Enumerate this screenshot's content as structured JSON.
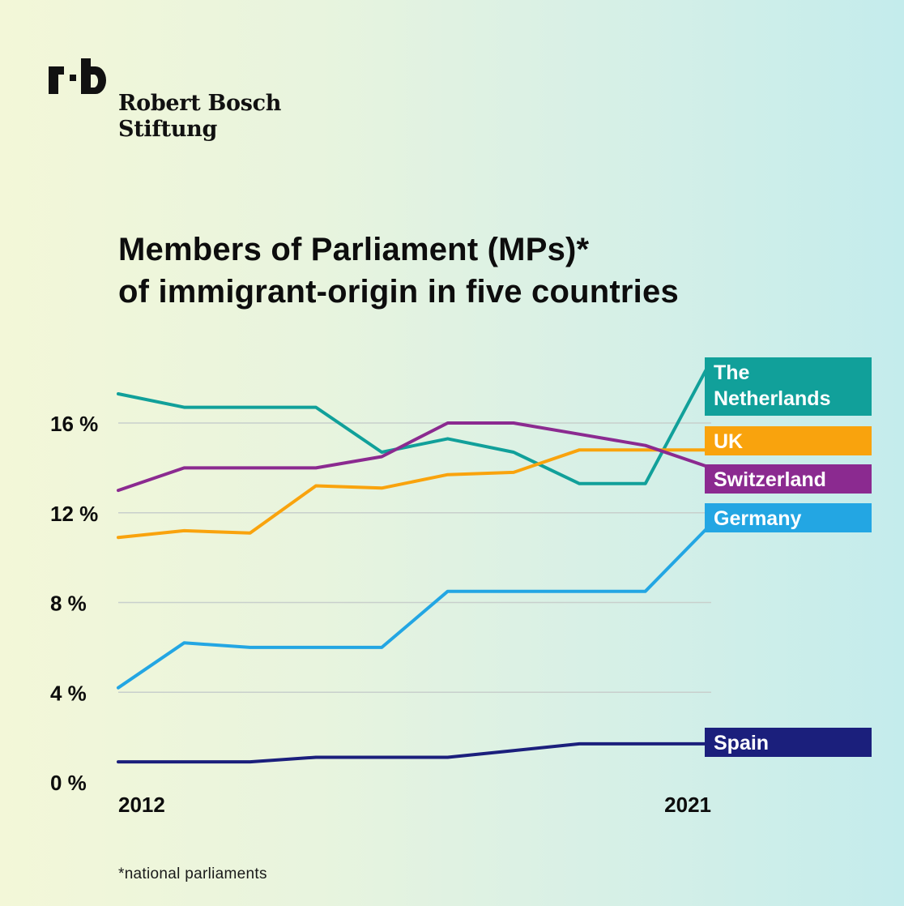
{
  "brand": {
    "logo_mark": "rb",
    "name_line1": "Robert Bosch",
    "name_line2": "Stiftung"
  },
  "title_line1": "Members of Parliament (MPs)*",
  "title_line2": "of immigrant-origin in five countries",
  "footnote": "*national parliaments",
  "chart_data": {
    "type": "line",
    "title": "Members of Parliament (MPs)* of immigrant-origin in five countries",
    "xlabel": "",
    "ylabel": "",
    "x_start_label": "2012",
    "x_end_label": "2021",
    "ylim": [
      0,
      16
    ],
    "yticks": [
      {
        "value": 0,
        "label": "0 %"
      },
      {
        "value": 4,
        "label": "4 %"
      },
      {
        "value": 8,
        "label": "8 %"
      },
      {
        "value": 12,
        "label": "12 %"
      },
      {
        "value": 16,
        "label": "16 %"
      }
    ],
    "grid": true,
    "legend": "direct labels at right end of lines",
    "series": [
      {
        "name": "The Netherlands",
        "label_lines": [
          "The",
          "Netherlands"
        ],
        "color": "#11a09a",
        "points": [
          [
            0,
            17.3
          ],
          [
            1,
            16.7
          ],
          [
            2,
            16.7
          ],
          [
            3,
            16.7
          ],
          [
            4,
            14.7
          ],
          [
            5,
            15.3
          ],
          [
            6,
            14.7
          ],
          [
            7,
            13.3
          ],
          [
            8,
            13.3
          ],
          [
            9,
            18.8
          ]
        ]
      },
      {
        "name": "UK",
        "label_lines": [
          "UK"
        ],
        "color": "#f9a30d",
        "points": [
          [
            0,
            10.9
          ],
          [
            1,
            11.2
          ],
          [
            2,
            11.1
          ],
          [
            3,
            13.2
          ],
          [
            4,
            13.1
          ],
          [
            5,
            13.7
          ],
          [
            6,
            13.8
          ],
          [
            7,
            14.8
          ],
          [
            8,
            14.8
          ],
          [
            9,
            14.8
          ]
        ]
      },
      {
        "name": "Switzerland",
        "label_lines": [
          "Switzerland"
        ],
        "color": "#8b2a90",
        "points": [
          [
            0,
            13.0
          ],
          [
            1,
            14.0
          ],
          [
            2,
            14.0
          ],
          [
            3,
            14.0
          ],
          [
            4,
            14.5
          ],
          [
            5,
            16.0
          ],
          [
            6,
            16.0
          ],
          [
            7,
            15.5
          ],
          [
            8,
            15.0
          ],
          [
            9,
            14.0
          ]
        ]
      },
      {
        "name": "Germany",
        "label_lines": [
          "Germany"
        ],
        "color": "#23a6e3",
        "points": [
          [
            0,
            4.2
          ],
          [
            1,
            6.2
          ],
          [
            2,
            6.0
          ],
          [
            3,
            6.0
          ],
          [
            4,
            6.0
          ],
          [
            5,
            8.5
          ],
          [
            6,
            8.5
          ],
          [
            7,
            8.5
          ],
          [
            8,
            8.5
          ],
          [
            9,
            11.5
          ]
        ]
      },
      {
        "name": "Spain",
        "label_lines": [
          "Spain"
        ],
        "color": "#1b1f7c",
        "points": [
          [
            0,
            0.9
          ],
          [
            1,
            0.9
          ],
          [
            2,
            0.9
          ],
          [
            3,
            1.1
          ],
          [
            4,
            1.1
          ],
          [
            5,
            1.1
          ],
          [
            6,
            1.4
          ],
          [
            7,
            1.7
          ],
          [
            8,
            1.7
          ],
          [
            9,
            1.7
          ]
        ]
      }
    ]
  }
}
